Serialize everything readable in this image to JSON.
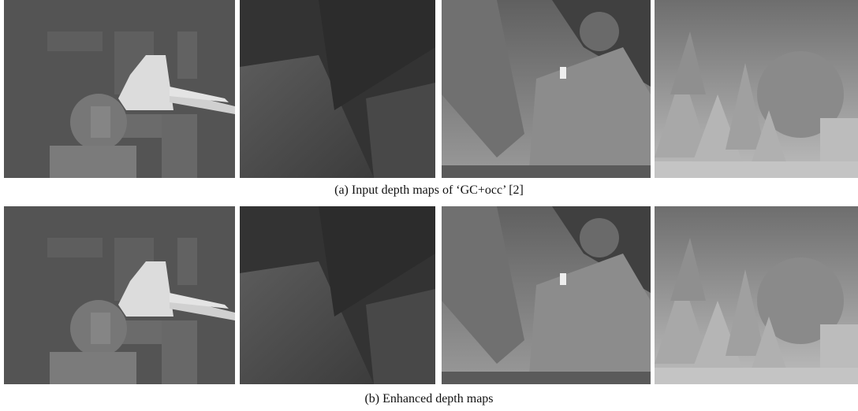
{
  "figure": {
    "rows": [
      {
        "caption": "(a) Input depth maps of ‘GC+occ’ [2]"
      },
      {
        "caption": "(b) Enhanced depth maps"
      }
    ]
  }
}
